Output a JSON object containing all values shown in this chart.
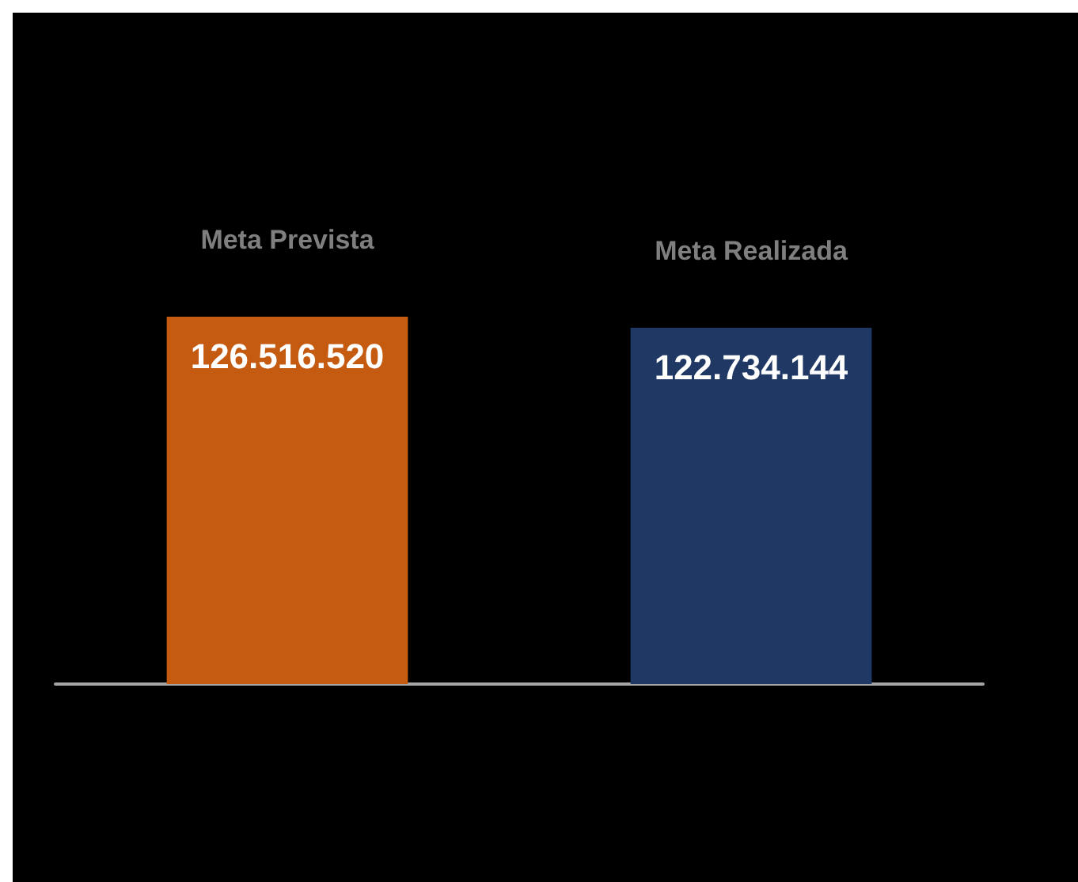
{
  "chart_data": {
    "type": "bar",
    "categories": [
      "Meta Prevista",
      "Meta Realizada"
    ],
    "values": [
      126516520,
      122734144
    ],
    "colors": [
      "#c55a11",
      "#203864"
    ],
    "value_labels": [
      "126.516.520",
      "122.734.144"
    ]
  }
}
